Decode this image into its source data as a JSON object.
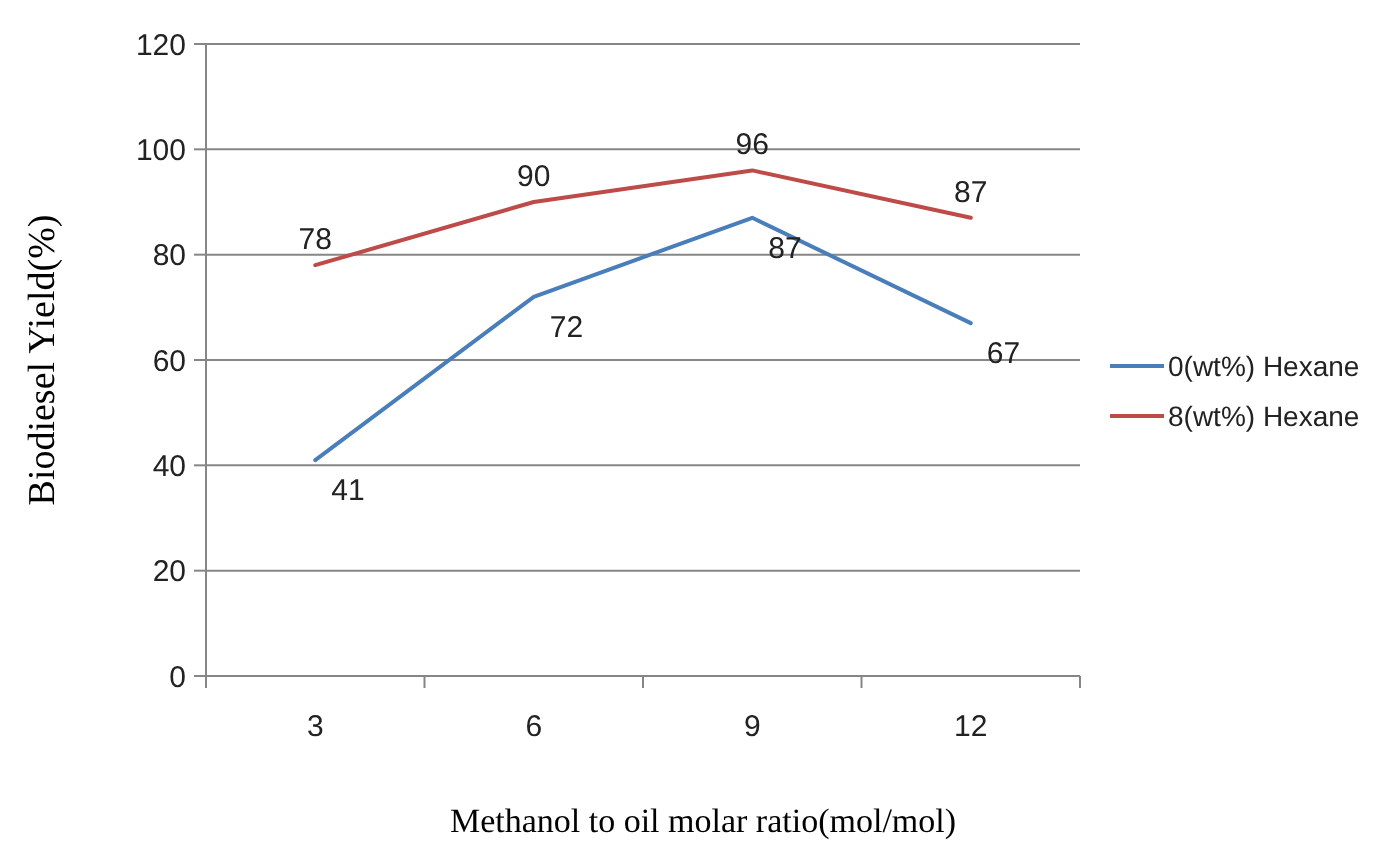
{
  "chart_data": {
    "type": "line",
    "xlabel": "Methanol to oil molar ratio(mol/mol)",
    "ylabel": "Biodiesel Yield(%)",
    "categories": [
      "3",
      "6",
      "9",
      "12"
    ],
    "ylim": [
      0,
      120
    ],
    "yticks": [
      0,
      20,
      40,
      60,
      80,
      100,
      120
    ],
    "grid": "y",
    "legend": "right",
    "data_labels": true,
    "marker": "none",
    "series": [
      {
        "name": "0(wt%) Hexane",
        "color": "#4a7ebb",
        "values": [
          41,
          72,
          87,
          67
        ]
      },
      {
        "name": "8(wt%) Hexane",
        "color": "#be4b48",
        "values": [
          78,
          90,
          96,
          87
        ]
      }
    ]
  }
}
